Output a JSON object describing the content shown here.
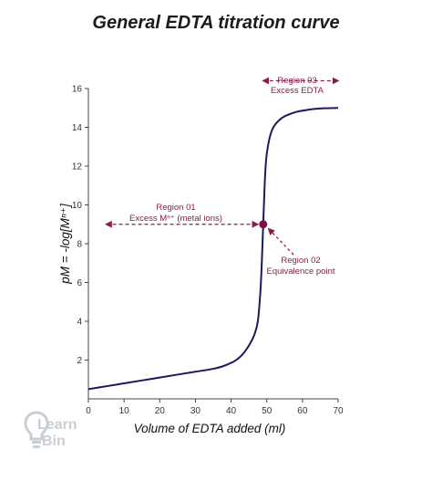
{
  "chart_data": {
    "type": "line",
    "title": "General EDTA titration curve",
    "xlabel": "Volume of EDTA added (ml)",
    "ylabel": "pM = -log[Mⁿ⁺]",
    "xlim": [
      0,
      70
    ],
    "ylim": [
      0,
      16
    ],
    "x_ticks": [
      0,
      10,
      20,
      30,
      40,
      50,
      60,
      70
    ],
    "y_ticks": [
      2,
      4,
      6,
      8,
      10,
      12,
      14,
      16
    ],
    "grid": false,
    "line_color": "#1a1a5e",
    "annotation_color": "#8b1c4e",
    "series": [
      {
        "x": [
          0,
          5,
          10,
          15,
          20,
          25,
          30,
          35,
          38,
          41,
          43,
          45,
          46.5,
          47.5,
          48.2,
          48.6,
          49,
          49.4,
          49.8,
          50.3,
          51,
          52,
          54,
          56,
          58,
          60,
          62,
          64,
          66,
          70
        ],
        "y": [
          0.5,
          0.65,
          0.8,
          0.95,
          1.1,
          1.25,
          1.4,
          1.55,
          1.7,
          1.95,
          2.25,
          2.75,
          3.3,
          4.0,
          5.5,
          7.0,
          9.0,
          11.0,
          12.3,
          13.0,
          13.6,
          14.05,
          14.45,
          14.65,
          14.78,
          14.86,
          14.92,
          14.96,
          14.98,
          15.0
        ]
      }
    ],
    "equivalence_point": {
      "x": 49,
      "y": 9
    },
    "annotations": {
      "region1": {
        "line1": "Region 01",
        "line2": "Excess Mⁿ⁺ (metal ions)",
        "x_from": 5,
        "x_to": 49,
        "y": 9
      },
      "region2": {
        "line1": "Region 02",
        "line2": "Equivalence point"
      },
      "region3": {
        "line1": "Region 03",
        "line2": "Excess EDTA",
        "x_from": 49,
        "x_to": 70,
        "y": 16.4
      }
    }
  },
  "logo": {
    "line1": "Learn",
    "line2": "Bin"
  }
}
